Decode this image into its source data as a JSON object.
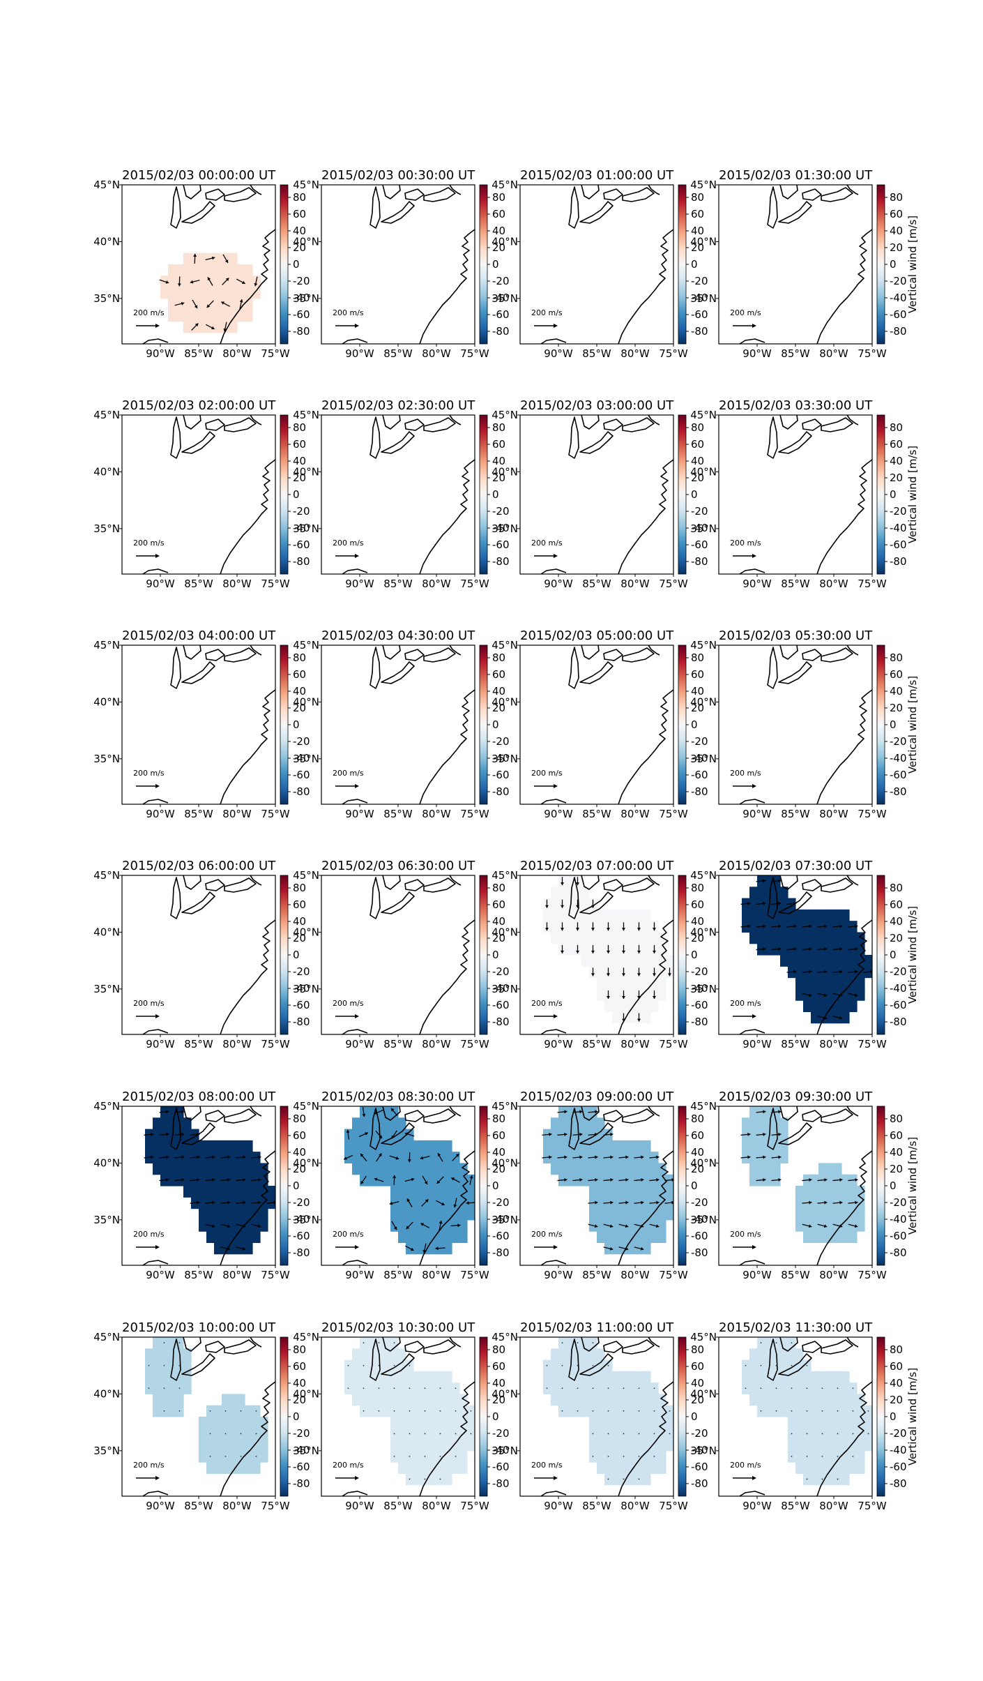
{
  "figure": {
    "colorbar_label": "Vertical wind [m/s]",
    "colorbar_ticks": [
      80,
      60,
      40,
      20,
      0,
      -20,
      -40,
      -60,
      -80
    ],
    "colorbar_range": [
      -95,
      95
    ],
    "colormap": "RdBu_r",
    "colormap_stops": [
      "#053061",
      "#2166ac",
      "#4393c3",
      "#92c5de",
      "#d1e5f0",
      "#f7f7f7",
      "#fddbc7",
      "#f4a582",
      "#d6604d",
      "#b2182b",
      "#67001f"
    ],
    "lon_ticks": [
      "90°W",
      "85°W",
      "80°W",
      "75°W"
    ],
    "lat_ticks": [
      "45°N",
      "40°N",
      "35°N"
    ],
    "quiver_key_label": "200 m/s",
    "coastline_color": "#000000",
    "background": "#ffffff"
  },
  "chart_data": [
    {
      "type": "heatmap",
      "title": "2015/02/03 00:00:00 UT",
      "value": 14,
      "region": "south",
      "arrows": "mixed",
      "show_axis_label": false
    },
    {
      "type": "heatmap",
      "title": "2015/02/03 00:30:00 UT",
      "value": null,
      "region": "none",
      "arrows": "none",
      "show_axis_label": false
    },
    {
      "type": "heatmap",
      "title": "2015/02/03 01:00:00 UT",
      "value": null,
      "region": "none",
      "arrows": "none",
      "show_axis_label": false
    },
    {
      "type": "heatmap",
      "title": "2015/02/03 01:30:00 UT",
      "value": null,
      "region": "none",
      "arrows": "none",
      "show_axis_label": true
    },
    {
      "type": "heatmap",
      "title": "2015/02/03 02:00:00 UT",
      "value": null,
      "region": "none",
      "arrows": "none",
      "show_axis_label": false
    },
    {
      "type": "heatmap",
      "title": "2015/02/03 02:30:00 UT",
      "value": null,
      "region": "none",
      "arrows": "none",
      "show_axis_label": false
    },
    {
      "type": "heatmap",
      "title": "2015/02/03 03:00:00 UT",
      "value": null,
      "region": "none",
      "arrows": "none",
      "show_axis_label": false
    },
    {
      "type": "heatmap",
      "title": "2015/02/03 03:30:00 UT",
      "value": null,
      "region": "none",
      "arrows": "none",
      "show_axis_label": true
    },
    {
      "type": "heatmap",
      "title": "2015/02/03 04:00:00 UT",
      "value": null,
      "region": "none",
      "arrows": "none",
      "show_axis_label": false
    },
    {
      "type": "heatmap",
      "title": "2015/02/03 04:30:00 UT",
      "value": null,
      "region": "none",
      "arrows": "none",
      "show_axis_label": false
    },
    {
      "type": "heatmap",
      "title": "2015/02/03 05:00:00 UT",
      "value": null,
      "region": "none",
      "arrows": "none",
      "show_axis_label": false
    },
    {
      "type": "heatmap",
      "title": "2015/02/03 05:30:00 UT",
      "value": null,
      "region": "none",
      "arrows": "none",
      "show_axis_label": true
    },
    {
      "type": "heatmap",
      "title": "2015/02/03 06:00:00 UT",
      "value": null,
      "region": "none",
      "arrows": "none",
      "show_axis_label": false
    },
    {
      "type": "heatmap",
      "title": "2015/02/03 06:30:00 UT",
      "value": null,
      "region": "none",
      "arrows": "none",
      "show_axis_label": false
    },
    {
      "type": "heatmap",
      "title": "2015/02/03 07:00:00 UT",
      "value": -1,
      "region": "diag",
      "arrows": "down",
      "show_axis_label": false
    },
    {
      "type": "heatmap",
      "title": "2015/02/03 07:30:00 UT",
      "value": -95,
      "region": "diag",
      "arrows": "east",
      "show_axis_label": true
    },
    {
      "type": "heatmap",
      "title": "2015/02/03 08:00:00 UT",
      "value": -95,
      "region": "diag",
      "arrows": "east",
      "show_axis_label": false
    },
    {
      "type": "heatmap",
      "title": "2015/02/03 08:30:00 UT",
      "value": -55,
      "region": "broad",
      "arrows": "mixed",
      "show_axis_label": false
    },
    {
      "type": "heatmap",
      "title": "2015/02/03 09:00:00 UT",
      "value": -42,
      "region": "broad",
      "arrows": "east",
      "show_axis_label": false
    },
    {
      "type": "heatmap",
      "title": "2015/02/03 09:30:00 UT",
      "value": -35,
      "region": "split",
      "arrows": "east",
      "show_axis_label": true
    },
    {
      "type": "heatmap",
      "title": "2015/02/03 10:00:00 UT",
      "value": -28,
      "region": "split",
      "arrows": "dots",
      "show_axis_label": false
    },
    {
      "type": "heatmap",
      "title": "2015/02/03 10:30:00 UT",
      "value": -14,
      "region": "broad",
      "arrows": "dots",
      "show_axis_label": false
    },
    {
      "type": "heatmap",
      "title": "2015/02/03 11:00:00 UT",
      "value": -20,
      "region": "broad",
      "arrows": "dots",
      "show_axis_label": false
    },
    {
      "type": "heatmap",
      "title": "2015/02/03 11:30:00 UT",
      "value": -20,
      "region": "broad",
      "arrows": "dots",
      "show_axis_label": true
    }
  ]
}
